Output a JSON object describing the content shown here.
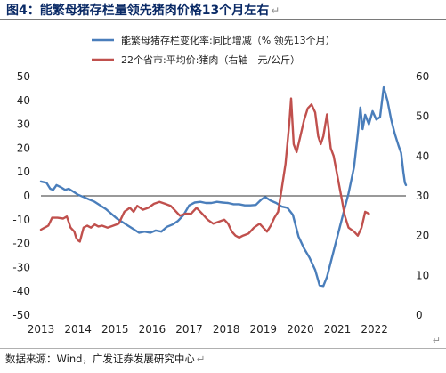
{
  "figure": {
    "title": "图4：能繁母猪存栏量领先猪肉价格13个月左右",
    "source": "数据来源：Wind，广发证券发展研究中心",
    "return_mark": "↵"
  },
  "chart_data": {
    "type": "line",
    "title": "图4：能繁母猪存栏量领先猪肉价格13个月左右",
    "grid": false,
    "legend_position": "top-right",
    "xlim": [
      2013,
      2022.85
    ],
    "x_ticks": [
      2013,
      2014,
      2015,
      2016,
      2017,
      2018,
      2019,
      2020,
      2021,
      2022
    ],
    "x_tick_labels": [
      "2013",
      "2014",
      "2015",
      "2016",
      "2017",
      "2018",
      "2019",
      "2020",
      "2021",
      "2022"
    ],
    "y_left": {
      "lim": [
        -50,
        50
      ],
      "ticks": [
        -50,
        -40,
        -30,
        -20,
        -10,
        0,
        10,
        20,
        30,
        40,
        50
      ]
    },
    "y_right": {
      "lim": [
        0,
        60
      ],
      "ticks": [
        0,
        10,
        20,
        30,
        40,
        50,
        60
      ]
    },
    "series": [
      {
        "name": "能繁母猪存栏变化率:同比增减（% 领先13个月）",
        "color": "#4a7ebb",
        "axis": "left",
        "points": [
          [
            2013.0,
            6
          ],
          [
            2013.15,
            5.5
          ],
          [
            2013.25,
            3
          ],
          [
            2013.33,
            2.5
          ],
          [
            2013.42,
            4.5
          ],
          [
            2013.55,
            3.5
          ],
          [
            2013.65,
            2.5
          ],
          [
            2013.75,
            3
          ],
          [
            2013.9,
            1.5
          ],
          [
            2014.0,
            0.5
          ],
          [
            2014.15,
            -0.5
          ],
          [
            2014.3,
            -1.5
          ],
          [
            2014.45,
            -2.5
          ],
          [
            2014.6,
            -4
          ],
          [
            2014.75,
            -5.5
          ],
          [
            2014.9,
            -7.5
          ],
          [
            2015.05,
            -9.5
          ],
          [
            2015.2,
            -11
          ],
          [
            2015.35,
            -12.5
          ],
          [
            2015.5,
            -14
          ],
          [
            2015.65,
            -15.5
          ],
          [
            2015.8,
            -15
          ],
          [
            2015.95,
            -15.5
          ],
          [
            2016.1,
            -14.5
          ],
          [
            2016.25,
            -15
          ],
          [
            2016.4,
            -13
          ],
          [
            2016.55,
            -12
          ],
          [
            2016.7,
            -10.5
          ],
          [
            2016.85,
            -8
          ],
          [
            2017.0,
            -4
          ],
          [
            2017.15,
            -2.8
          ],
          [
            2017.3,
            -2.5
          ],
          [
            2017.45,
            -3
          ],
          [
            2017.6,
            -3
          ],
          [
            2017.75,
            -2.5
          ],
          [
            2017.9,
            -2.8
          ],
          [
            2018.05,
            -3
          ],
          [
            2018.2,
            -3.5
          ],
          [
            2018.35,
            -3.5
          ],
          [
            2018.5,
            -4
          ],
          [
            2018.65,
            -4
          ],
          [
            2018.8,
            -3.8
          ],
          [
            2018.95,
            -1.5
          ],
          [
            2019.05,
            -0.5
          ],
          [
            2019.2,
            -2
          ],
          [
            2019.35,
            -3
          ],
          [
            2019.5,
            -4.5
          ],
          [
            2019.65,
            -5
          ],
          [
            2019.8,
            -8
          ],
          [
            2019.95,
            -17
          ],
          [
            2020.1,
            -22
          ],
          [
            2020.25,
            -26
          ],
          [
            2020.4,
            -31
          ],
          [
            2020.52,
            -37.5
          ],
          [
            2020.62,
            -37.8
          ],
          [
            2020.72,
            -34
          ],
          [
            2020.85,
            -26
          ],
          [
            2021.0,
            -17
          ],
          [
            2021.15,
            -8
          ],
          [
            2021.3,
            1
          ],
          [
            2021.45,
            12
          ],
          [
            2021.55,
            26
          ],
          [
            2021.62,
            37
          ],
          [
            2021.68,
            28
          ],
          [
            2021.75,
            34
          ],
          [
            2021.85,
            30
          ],
          [
            2021.95,
            35.5
          ],
          [
            2022.05,
            32
          ],
          [
            2022.15,
            33
          ],
          [
            2022.25,
            45.5
          ],
          [
            2022.35,
            40
          ],
          [
            2022.45,
            32
          ],
          [
            2022.55,
            26
          ],
          [
            2022.65,
            21
          ],
          [
            2022.72,
            18
          ],
          [
            2022.78,
            10
          ],
          [
            2022.82,
            5.5
          ],
          [
            2022.85,
            4.5
          ]
        ]
      },
      {
        "name": "22个省市:平均价:猪肉（右轴　元/公斤）",
        "color": "#c0504d",
        "axis": "right",
        "points": [
          [
            2013.0,
            21.5
          ],
          [
            2013.1,
            22
          ],
          [
            2013.2,
            22.5
          ],
          [
            2013.3,
            24.5
          ],
          [
            2013.45,
            24.5
          ],
          [
            2013.6,
            24.3
          ],
          [
            2013.7,
            24.8
          ],
          [
            2013.8,
            22
          ],
          [
            2013.9,
            21
          ],
          [
            2013.95,
            19.5
          ],
          [
            2014.0,
            18.8
          ],
          [
            2014.05,
            18.5
          ],
          [
            2014.15,
            22
          ],
          [
            2014.25,
            22.5
          ],
          [
            2014.35,
            22
          ],
          [
            2014.45,
            22.8
          ],
          [
            2014.55,
            22.3
          ],
          [
            2014.65,
            22.5
          ],
          [
            2014.8,
            22
          ],
          [
            2014.95,
            22.5
          ],
          [
            2015.1,
            23
          ],
          [
            2015.25,
            26
          ],
          [
            2015.4,
            27
          ],
          [
            2015.5,
            26
          ],
          [
            2015.6,
            27.5
          ],
          [
            2015.75,
            26.5
          ],
          [
            2015.9,
            27
          ],
          [
            2016.05,
            28
          ],
          [
            2016.2,
            28.5
          ],
          [
            2016.35,
            28
          ],
          [
            2016.5,
            27.5
          ],
          [
            2016.6,
            26.5
          ],
          [
            2016.75,
            25
          ],
          [
            2016.9,
            25.5
          ],
          [
            2017.05,
            25.5
          ],
          [
            2017.2,
            27
          ],
          [
            2017.35,
            25.5
          ],
          [
            2017.5,
            24
          ],
          [
            2017.65,
            23
          ],
          [
            2017.8,
            23.5
          ],
          [
            2017.95,
            24
          ],
          [
            2018.05,
            23
          ],
          [
            2018.15,
            21
          ],
          [
            2018.25,
            20
          ],
          [
            2018.35,
            19.5
          ],
          [
            2018.45,
            20
          ],
          [
            2018.6,
            20.5
          ],
          [
            2018.75,
            22
          ],
          [
            2018.9,
            23
          ],
          [
            2019.0,
            22
          ],
          [
            2019.1,
            21
          ],
          [
            2019.2,
            22.5
          ],
          [
            2019.3,
            24.5
          ],
          [
            2019.4,
            26
          ],
          [
            2019.5,
            32
          ],
          [
            2019.6,
            38
          ],
          [
            2019.7,
            48
          ],
          [
            2019.75,
            54.5
          ],
          [
            2019.82,
            43
          ],
          [
            2019.9,
            41
          ],
          [
            2020.0,
            45
          ],
          [
            2020.1,
            49
          ],
          [
            2020.2,
            52
          ],
          [
            2020.3,
            53
          ],
          [
            2020.4,
            51
          ],
          [
            2020.48,
            45
          ],
          [
            2020.55,
            43
          ],
          [
            2020.62,
            45
          ],
          [
            2020.72,
            50.5
          ],
          [
            2020.82,
            42
          ],
          [
            2020.9,
            40
          ],
          [
            2021.0,
            35
          ],
          [
            2021.1,
            30
          ],
          [
            2021.2,
            25
          ],
          [
            2021.3,
            22
          ],
          [
            2021.45,
            21
          ],
          [
            2021.55,
            20
          ],
          [
            2021.65,
            22
          ],
          [
            2021.75,
            26
          ],
          [
            2021.85,
            25.5
          ]
        ]
      }
    ]
  }
}
